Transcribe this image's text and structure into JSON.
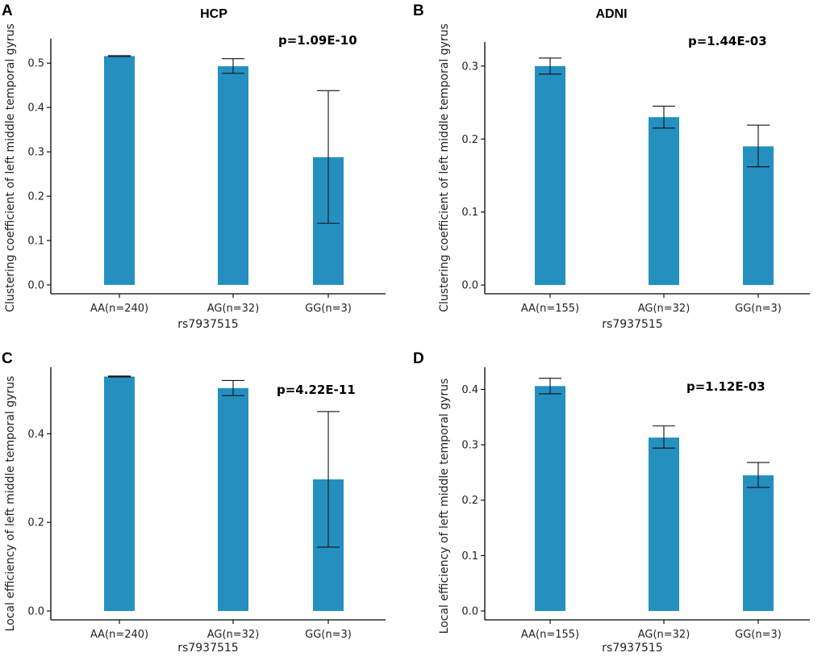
{
  "figure_caption": "",
  "chart_data": [
    {
      "panel": "A",
      "type": "bar",
      "title": "HCP",
      "annotation": "p=1.09E-10",
      "xlabel": "rs7937515",
      "ylabel": "Clustering coefficient of left middle temporal gyrus",
      "categories": [
        "AA(n=240)",
        "AG(n=32)",
        "GG(n=3)"
      ],
      "values": [
        0.516,
        0.493,
        0.288
      ],
      "error_low": [
        0.515,
        0.477,
        0.139
      ],
      "error_high": [
        0.517,
        0.51,
        0.438
      ],
      "ylim": [
        -0.02,
        0.555
      ],
      "yticks": [
        0.0,
        0.1,
        0.2,
        0.3,
        0.4,
        0.5
      ],
      "ytick_labels": [
        "0.0",
        "0.1",
        "0.2",
        "0.3",
        "0.4",
        "0.5"
      ],
      "color": "#2590c0"
    },
    {
      "panel": "B",
      "type": "bar",
      "title": "ADNI",
      "annotation": "p=1.44E-03",
      "xlabel": "rs7937515",
      "ylabel": "Clustering coefficient of left middle temporal gyrus",
      "categories": [
        "AA(n=155)",
        "AG(n=32)",
        "GG(n=3)"
      ],
      "values": [
        0.3,
        0.23,
        0.19
      ],
      "error_low": [
        0.289,
        0.215,
        0.162
      ],
      "error_high": [
        0.311,
        0.245,
        0.219
      ],
      "ylim": [
        -0.012,
        0.333
      ],
      "yticks": [
        0.0,
        0.1,
        0.2,
        0.3
      ],
      "ytick_labels": [
        "0.0",
        "0.1",
        "0.2",
        "0.3"
      ],
      "color": "#2590c0"
    },
    {
      "panel": "C",
      "type": "bar",
      "title": "",
      "annotation": "p=4.22E-11",
      "xlabel": "rs7937515",
      "ylabel": "Local efficiency of left middle temporal gyrus",
      "categories": [
        "AA(n=240)",
        "AG(n=32)",
        "GG(n=3)"
      ],
      "values": [
        0.529,
        0.503,
        0.297
      ],
      "error_low": [
        0.528,
        0.486,
        0.144
      ],
      "error_high": [
        0.53,
        0.52,
        0.45
      ],
      "ylim": [
        -0.02,
        0.55
      ],
      "yticks": [
        0.0,
        0.2,
        0.4
      ],
      "ytick_labels": [
        "0.0",
        "0.2",
        "0.4"
      ],
      "color": "#2590c0"
    },
    {
      "panel": "D",
      "type": "bar",
      "title": "",
      "annotation": "p=1.12E-03",
      "xlabel": "rs7937515",
      "ylabel": "Local efficiency of left middle temporal gyrus",
      "categories": [
        "AA(n=155)",
        "AG(n=32)",
        "GG(n=3)"
      ],
      "values": [
        0.406,
        0.313,
        0.245
      ],
      "error_low": [
        0.392,
        0.294,
        0.223
      ],
      "error_high": [
        0.42,
        0.334,
        0.268
      ],
      "ylim": [
        -0.016,
        0.44
      ],
      "yticks": [
        0.0,
        0.1,
        0.2,
        0.3,
        0.4
      ],
      "ytick_labels": [
        "0.0",
        "0.1",
        "0.2",
        "0.3",
        "0.4"
      ],
      "color": "#2590c0"
    }
  ]
}
